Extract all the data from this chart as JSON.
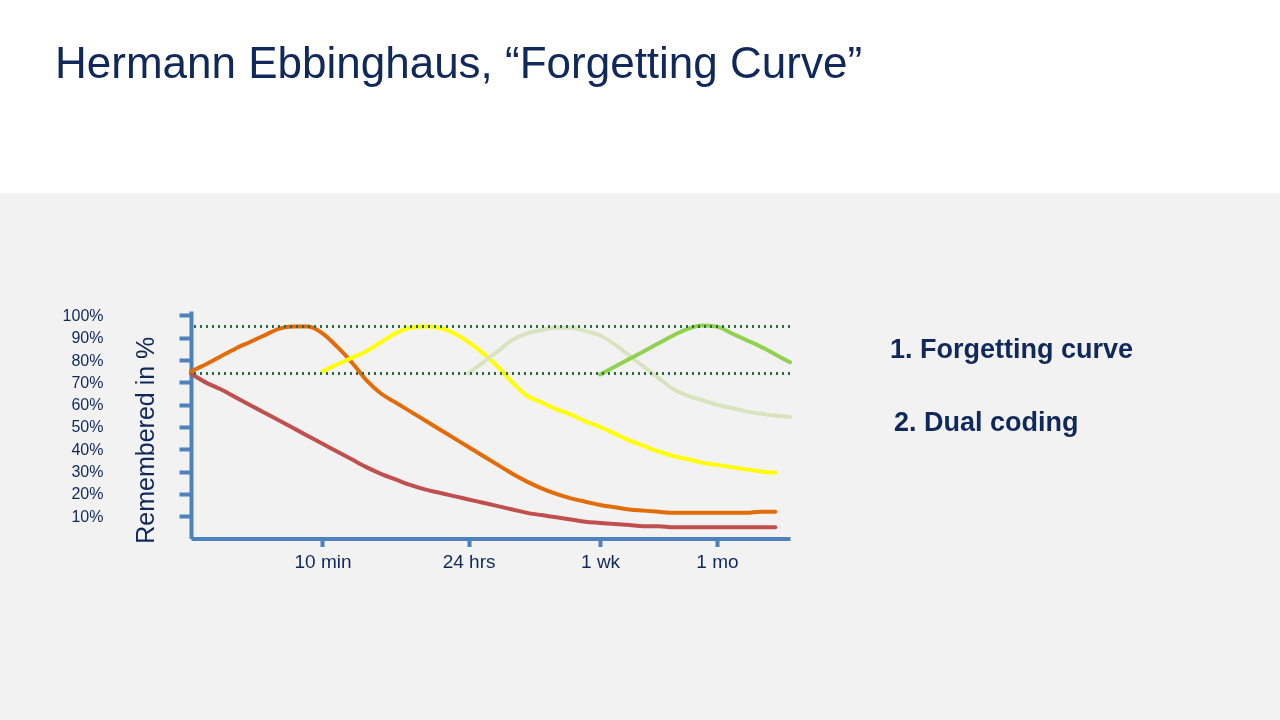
{
  "chart_data": {
    "type": "line",
    "title": "Hermann Ebbinghaus, “Forgetting Curve”",
    "ylabel": "Remembered in %",
    "categories": [
      null,
      null,
      null,
      null,
      null,
      null,
      null,
      null,
      null,
      "10 min",
      null,
      null,
      null,
      null,
      null,
      null,
      null,
      null,
      null,
      "24 hrs",
      null,
      null,
      null,
      null,
      null,
      null,
      null,
      null,
      "1 wk",
      null,
      null,
      null,
      null,
      null,
      null,
      null,
      "1 mo",
      null,
      null,
      null,
      null,
      null
    ],
    "ylim": [
      0,
      102
    ],
    "yticks": [
      {
        "value": 10,
        "label": "10%"
      },
      {
        "value": 20,
        "label": "20%"
      },
      {
        "value": 30,
        "label": "30%"
      },
      {
        "value": 40,
        "label": "40%"
      },
      {
        "value": 50,
        "label": "50%"
      },
      {
        "value": 60,
        "label": "60%"
      },
      {
        "value": 70,
        "label": "70%"
      },
      {
        "value": 80,
        "label": "80%"
      },
      {
        "value": 90,
        "label": "90%"
      },
      {
        "value": 100,
        "label": "100%"
      }
    ],
    "grid": false,
    "series": [
      {
        "color": "#c0504d",
        "values": [
          74,
          70,
          67,
          63.5,
          60,
          56.5,
          53,
          49.5,
          46,
          42.5,
          39,
          35.5,
          32,
          29,
          26.5,
          24,
          22,
          20.5,
          19,
          17.5,
          16,
          14.5,
          13,
          11.5,
          10.5,
          9.5,
          8.5,
          7.5,
          7,
          6.5,
          6,
          5.5,
          5.5,
          5,
          5,
          5,
          5,
          5,
          5,
          5,
          5,
          null
        ]
      },
      {
        "color": "#e36c09",
        "values": [
          75,
          78,
          81.5,
          85,
          88,
          91,
          94,
          95,
          95,
          92,
          86,
          79,
          71,
          65,
          61,
          57,
          53,
          49,
          45,
          41,
          37,
          33,
          29,
          25.5,
          22.5,
          20,
          18,
          16.5,
          15,
          14,
          13,
          12.5,
          12,
          11.5,
          11.5,
          11.5,
          11.5,
          11.5,
          11.5,
          12,
          12,
          null
        ]
      },
      {
        "color": "#ffff00",
        "values": [
          null,
          null,
          null,
          null,
          null,
          null,
          null,
          null,
          null,
          75,
          78,
          81,
          84,
          88,
          92,
          94.5,
          95,
          94.5,
          92,
          88,
          83,
          77,
          70,
          64,
          61,
          58,
          55.5,
          52.5,
          50,
          47,
          44,
          41.5,
          39,
          37,
          35.5,
          34,
          33,
          32,
          31,
          30,
          29.5,
          null
        ]
      },
      {
        "color": "#d7e4bd",
        "values": [
          null,
          null,
          null,
          null,
          null,
          null,
          null,
          null,
          null,
          null,
          null,
          null,
          null,
          null,
          null,
          null,
          null,
          null,
          null,
          74,
          79,
          84,
          89,
          92,
          93.5,
          94.5,
          94.5,
          93,
          91,
          87,
          82,
          77,
          72,
          67,
          64,
          62,
          60,
          58.5,
          57,
          56,
          55,
          54.5
        ]
      },
      {
        "color": "#92d050",
        "values": [
          null,
          null,
          null,
          null,
          null,
          null,
          null,
          null,
          null,
          null,
          null,
          null,
          null,
          null,
          null,
          null,
          null,
          null,
          null,
          null,
          null,
          null,
          null,
          null,
          null,
          null,
          null,
          null,
          73.5,
          77,
          80.5,
          84,
          87.5,
          91,
          94,
          95.5,
          95,
          92,
          89,
          86,
          82.5,
          79
        ]
      }
    ],
    "ref_lines": [
      {
        "axis": "y",
        "value": 95,
        "color": "#2e6b3e",
        "line_style": "dotted"
      },
      {
        "axis": "y",
        "value": 74,
        "color": "#2e6b3e",
        "line_style": "dotted"
      }
    ],
    "annotations": [
      "1. Forgetting curve",
      "2. Dual coding"
    ]
  }
}
